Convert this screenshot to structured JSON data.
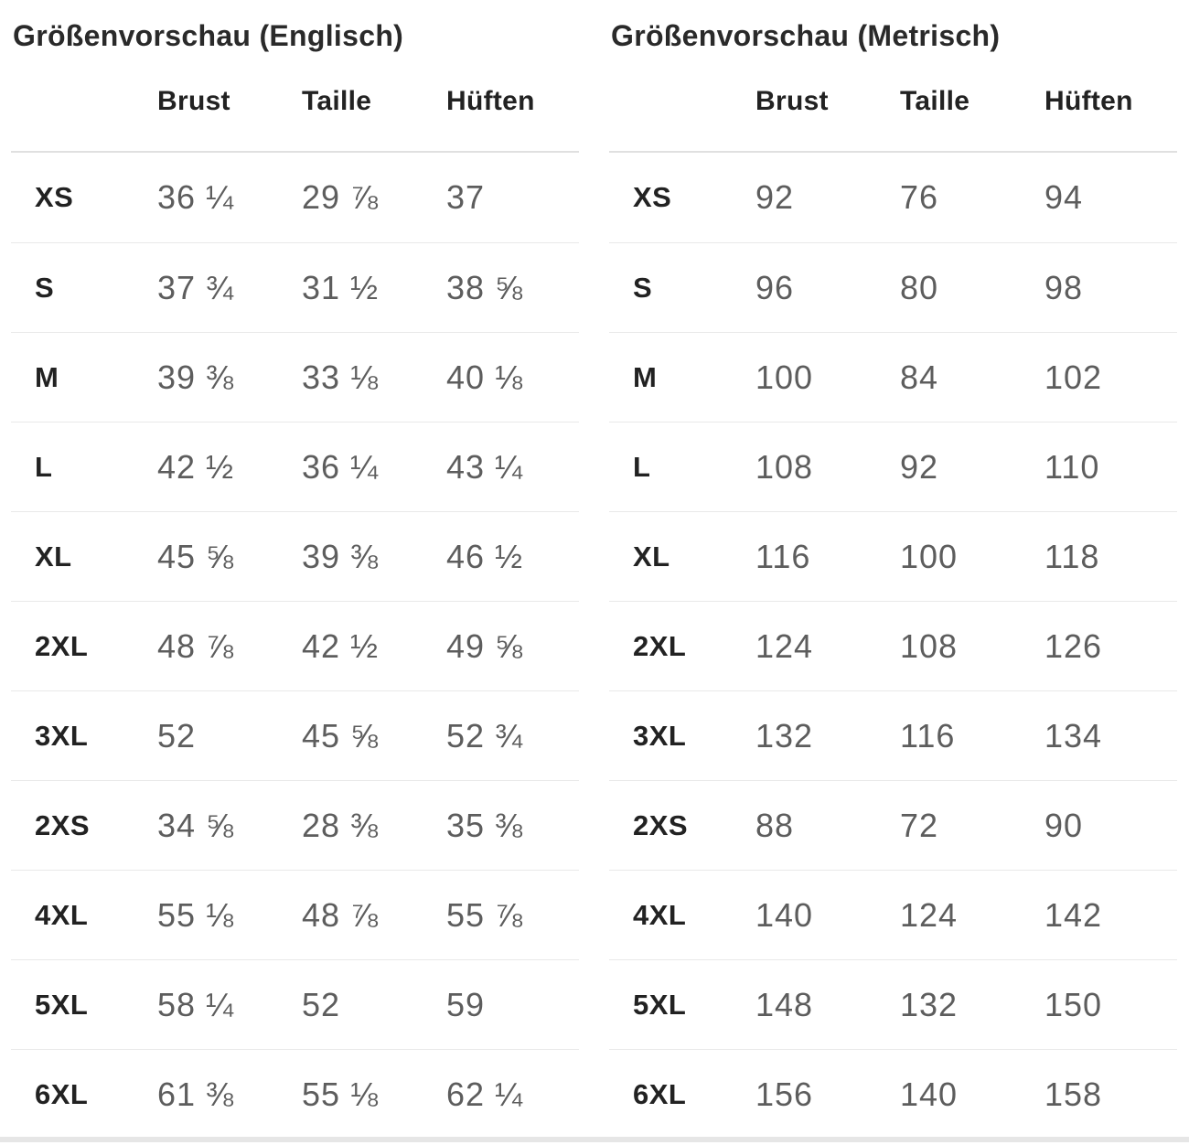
{
  "colors": {
    "background": "#ffffff",
    "heading_text": "#2a2a2a",
    "label_text": "#222222",
    "value_text": "#5d5d5d",
    "header_separator": "#e0e0e0",
    "row_separator": "#e9e9e9",
    "bottom_divider": "#e6e6e6"
  },
  "tables": [
    {
      "title": "Größenvorschau (Englisch)",
      "columns": [
        "Brust",
        "Taille",
        "Hüften"
      ],
      "rows": [
        {
          "size": "XS",
          "values": [
            "36 ¼",
            "29 ⅞",
            "37"
          ]
        },
        {
          "size": "S",
          "values": [
            "37 ¾",
            "31 ½",
            "38 ⅝"
          ]
        },
        {
          "size": "M",
          "values": [
            "39 ⅜",
            "33 ⅛",
            "40 ⅛"
          ]
        },
        {
          "size": "L",
          "values": [
            "42 ½",
            "36 ¼",
            "43 ¼"
          ]
        },
        {
          "size": "XL",
          "values": [
            "45 ⅝",
            "39 ⅜",
            "46 ½"
          ]
        },
        {
          "size": "2XL",
          "values": [
            "48 ⅞",
            "42 ½",
            "49 ⅝"
          ]
        },
        {
          "size": "3XL",
          "values": [
            "52",
            "45 ⅝",
            "52 ¾"
          ]
        },
        {
          "size": "2XS",
          "values": [
            "34 ⅝",
            "28 ⅜",
            "35 ⅜"
          ]
        },
        {
          "size": "4XL",
          "values": [
            "55 ⅛",
            "48 ⅞",
            "55 ⅞"
          ]
        },
        {
          "size": "5XL",
          "values": [
            "58 ¼",
            "52",
            "59"
          ]
        },
        {
          "size": "6XL",
          "values": [
            "61 ⅜",
            "55 ⅛",
            "62 ¼"
          ]
        }
      ]
    },
    {
      "title": "Größenvorschau (Metrisch)",
      "columns": [
        "Brust",
        "Taille",
        "Hüften"
      ],
      "rows": [
        {
          "size": "XS",
          "values": [
            "92",
            "76",
            "94"
          ]
        },
        {
          "size": "S",
          "values": [
            "96",
            "80",
            "98"
          ]
        },
        {
          "size": "M",
          "values": [
            "100",
            "84",
            "102"
          ]
        },
        {
          "size": "L",
          "values": [
            "108",
            "92",
            "110"
          ]
        },
        {
          "size": "XL",
          "values": [
            "116",
            "100",
            "118"
          ]
        },
        {
          "size": "2XL",
          "values": [
            "124",
            "108",
            "126"
          ]
        },
        {
          "size": "3XL",
          "values": [
            "132",
            "116",
            "134"
          ]
        },
        {
          "size": "2XS",
          "values": [
            "88",
            "72",
            "90"
          ]
        },
        {
          "size": "4XL",
          "values": [
            "140",
            "124",
            "142"
          ]
        },
        {
          "size": "5XL",
          "values": [
            "148",
            "132",
            "150"
          ]
        },
        {
          "size": "6XL",
          "values": [
            "156",
            "140",
            "158"
          ]
        }
      ]
    }
  ]
}
